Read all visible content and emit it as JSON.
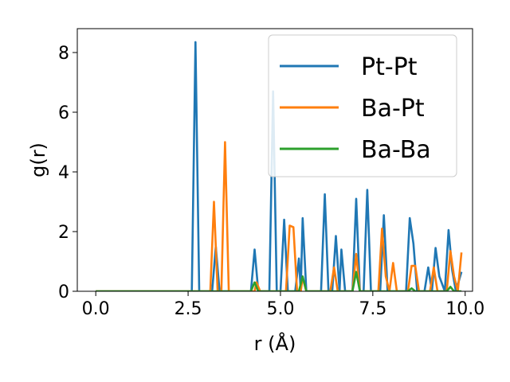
{
  "chart_data": {
    "type": "line",
    "title": "",
    "xlabel": "r (Å)",
    "ylabel": "g(r)",
    "xlim": [
      -0.5,
      10.2
    ],
    "ylim": [
      0,
      8.8
    ],
    "xticks": [
      0.0,
      2.5,
      5.0,
      7.5,
      10.0
    ],
    "xtick_labels": [
      "0.0",
      "2.5",
      "5.0",
      "7.5",
      "10.0"
    ],
    "yticks": [
      0,
      2,
      4,
      6,
      8
    ],
    "ytick_labels": [
      "0",
      "2",
      "4",
      "6",
      "8"
    ],
    "grid": false,
    "legend_position": "top-right",
    "series": [
      {
        "name": "Pt-Pt",
        "color": "#1f77b4",
        "points": [
          [
            0,
            0
          ],
          [
            2.6,
            0
          ],
          [
            2.7,
            8.35
          ],
          [
            2.8,
            0
          ],
          [
            3.15,
            0
          ],
          [
            3.25,
            1.5
          ],
          [
            3.35,
            0
          ],
          [
            4.2,
            0
          ],
          [
            4.3,
            1.4
          ],
          [
            4.4,
            0
          ],
          [
            4.7,
            0
          ],
          [
            4.8,
            6.7
          ],
          [
            4.9,
            0
          ],
          [
            5.0,
            0
          ],
          [
            5.1,
            2.4
          ],
          [
            5.2,
            0
          ],
          [
            5.4,
            0
          ],
          [
            5.5,
            1.1
          ],
          [
            5.55,
            0
          ],
          [
            5.55,
            0
          ],
          [
            5.6,
            2.45
          ],
          [
            5.7,
            0
          ],
          [
            6.1,
            0
          ],
          [
            6.2,
            3.25
          ],
          [
            6.3,
            0
          ],
          [
            6.4,
            0
          ],
          [
            6.5,
            1.85
          ],
          [
            6.6,
            0
          ],
          [
            6.65,
            1.4
          ],
          [
            6.75,
            0
          ],
          [
            6.95,
            0
          ],
          [
            7.05,
            3.1
          ],
          [
            7.15,
            0
          ],
          [
            7.25,
            0
          ],
          [
            7.35,
            3.4
          ],
          [
            7.45,
            0
          ],
          [
            7.7,
            0
          ],
          [
            7.8,
            2.55
          ],
          [
            7.9,
            0
          ],
          [
            8.4,
            0
          ],
          [
            8.5,
            2.45
          ],
          [
            8.6,
            1.6
          ],
          [
            8.7,
            0
          ],
          [
            8.9,
            0
          ],
          [
            9.0,
            0.8
          ],
          [
            9.1,
            0
          ],
          [
            9.2,
            1.45
          ],
          [
            9.3,
            0.5
          ],
          [
            9.45,
            0
          ],
          [
            9.55,
            2.05
          ],
          [
            9.65,
            0.7
          ],
          [
            9.75,
            0
          ],
          [
            9.9,
            0.65
          ]
        ]
      },
      {
        "name": "Ba-Pt",
        "color": "#ff7f0e",
        "points": [
          [
            0,
            0
          ],
          [
            3.1,
            0
          ],
          [
            3.2,
            3.0
          ],
          [
            3.3,
            0
          ],
          [
            3.4,
            0
          ],
          [
            3.5,
            5.0
          ],
          [
            3.6,
            0
          ],
          [
            4.3,
            0
          ],
          [
            4.35,
            0.3
          ],
          [
            4.45,
            0
          ],
          [
            5.15,
            0
          ],
          [
            5.25,
            2.2
          ],
          [
            5.35,
            2.15
          ],
          [
            5.45,
            0
          ],
          [
            5.55,
            0
          ],
          [
            5.6,
            0.45
          ],
          [
            5.7,
            0
          ],
          [
            6.35,
            0
          ],
          [
            6.45,
            0.8
          ],
          [
            6.55,
            0
          ],
          [
            6.95,
            0
          ],
          [
            7.05,
            1.25
          ],
          [
            7.15,
            0
          ],
          [
            7.65,
            0
          ],
          [
            7.75,
            2.1
          ],
          [
            7.85,
            0.5
          ],
          [
            7.95,
            0
          ],
          [
            8.05,
            0.95
          ],
          [
            8.15,
            0
          ],
          [
            8.45,
            0
          ],
          [
            8.55,
            0.85
          ],
          [
            8.65,
            0.85
          ],
          [
            8.75,
            0
          ],
          [
            9.05,
            0
          ],
          [
            9.15,
            0.8
          ],
          [
            9.25,
            0
          ],
          [
            9.5,
            0
          ],
          [
            9.6,
            1.35
          ],
          [
            9.7,
            0.5
          ],
          [
            9.8,
            0
          ],
          [
            9.9,
            1.3
          ]
        ]
      },
      {
        "name": "Ba-Ba",
        "color": "#2ca02c",
        "points": [
          [
            0,
            0
          ],
          [
            4.2,
            0
          ],
          [
            4.3,
            0.3
          ],
          [
            4.4,
            0
          ],
          [
            5.5,
            0
          ],
          [
            5.6,
            0.5
          ],
          [
            5.7,
            0
          ],
          [
            6.95,
            0
          ],
          [
            7.05,
            0.65
          ],
          [
            7.15,
            0
          ],
          [
            8.45,
            0
          ],
          [
            8.55,
            0.1
          ],
          [
            8.65,
            0
          ],
          [
            9.5,
            0
          ],
          [
            9.6,
            0.15
          ],
          [
            9.7,
            0
          ],
          [
            9.9,
            0
          ]
        ]
      }
    ]
  }
}
